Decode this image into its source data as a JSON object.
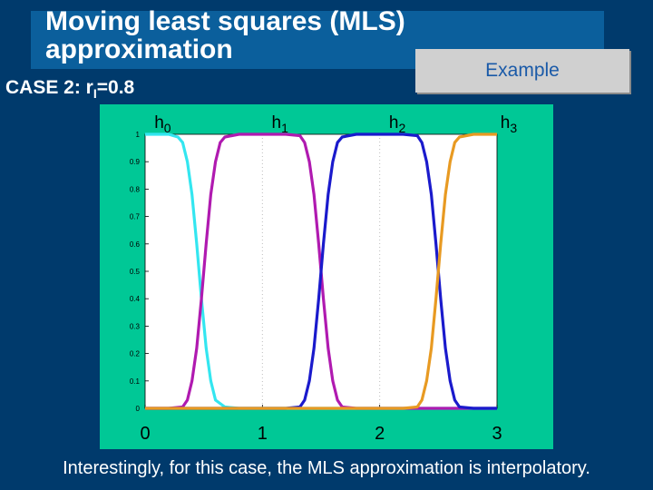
{
  "slide": {
    "title": "Moving least squares (MLS) approximation",
    "example_label": "Example",
    "case_label_prefix": "CASE 2: r",
    "case_label_sub": "I",
    "case_label_suffix": "=0.8",
    "caption": "Interestingly, for this case, the MLS approximation is interpolatory."
  },
  "colors": {
    "background": "#003a6c",
    "title_bar": "#0b5f9c",
    "plot_panel": "#00c896",
    "plot_area": "#ffffff"
  },
  "chart_data": {
    "type": "line",
    "xlim": [
      0,
      3
    ],
    "ylim": [
      0,
      1
    ],
    "x_ticks": [
      0,
      1,
      2,
      3
    ],
    "y_ticks": [
      0,
      0.1,
      0.2,
      0.3,
      0.4,
      0.5,
      0.6,
      0.7,
      0.8,
      0.9,
      1
    ],
    "y_tick_labels": [
      "0",
      "0.1",
      "0.2",
      "0.3",
      "0.4",
      "0.5",
      "0.6",
      "0.7",
      "0.8",
      "0.9",
      "1"
    ],
    "grid": true,
    "series": [
      {
        "name": "h0",
        "label_main": "h",
        "label_sub": "0",
        "color": "#33e6f0",
        "x": [
          0,
          0.2,
          0.28,
          0.32,
          0.36,
          0.4,
          0.44,
          0.48,
          0.52,
          0.56,
          0.6,
          0.68,
          0.8,
          3
        ],
        "y": [
          1,
          1,
          0.99,
          0.97,
          0.9,
          0.78,
          0.6,
          0.4,
          0.22,
          0.1,
          0.03,
          0.005,
          0,
          0
        ]
      },
      {
        "name": "h1",
        "label_main": "h",
        "label_sub": "1",
        "color": "#b01ab0",
        "x": [
          0,
          0.2,
          0.32,
          0.36,
          0.4,
          0.44,
          0.48,
          0.52,
          0.56,
          0.6,
          0.64,
          0.68,
          0.8,
          1.2,
          1.32,
          1.36,
          1.4,
          1.44,
          1.48,
          1.52,
          1.56,
          1.6,
          1.64,
          1.68,
          1.8,
          3
        ],
        "y": [
          0,
          0,
          0.005,
          0.03,
          0.1,
          0.22,
          0.4,
          0.6,
          0.78,
          0.9,
          0.97,
          0.99,
          1,
          1,
          0.995,
          0.97,
          0.9,
          0.78,
          0.6,
          0.4,
          0.22,
          0.1,
          0.03,
          0.005,
          0,
          0
        ]
      },
      {
        "name": "h2",
        "label_main": "h",
        "label_sub": "2",
        "color": "#1a1acc",
        "x": [
          0,
          1.2,
          1.32,
          1.36,
          1.4,
          1.44,
          1.48,
          1.52,
          1.56,
          1.6,
          1.64,
          1.68,
          1.8,
          2.2,
          2.32,
          2.36,
          2.4,
          2.44,
          2.48,
          2.52,
          2.56,
          2.6,
          2.64,
          2.68,
          2.8,
          3
        ],
        "y": [
          0,
          0,
          0.005,
          0.03,
          0.1,
          0.22,
          0.4,
          0.6,
          0.78,
          0.9,
          0.97,
          0.99,
          1,
          1,
          0.995,
          0.97,
          0.9,
          0.78,
          0.6,
          0.4,
          0.22,
          0.1,
          0.03,
          0.005,
          0,
          0
        ]
      },
      {
        "name": "h3",
        "label_main": "h",
        "label_sub": "3",
        "color": "#e89a22",
        "x": [
          0,
          2.2,
          2.32,
          2.36,
          2.4,
          2.44,
          2.48,
          2.52,
          2.56,
          2.6,
          2.64,
          2.68,
          2.8,
          3
        ],
        "y": [
          0,
          0,
          0.005,
          0.03,
          0.1,
          0.22,
          0.4,
          0.6,
          0.78,
          0.9,
          0.97,
          0.99,
          1,
          1
        ]
      }
    ]
  }
}
